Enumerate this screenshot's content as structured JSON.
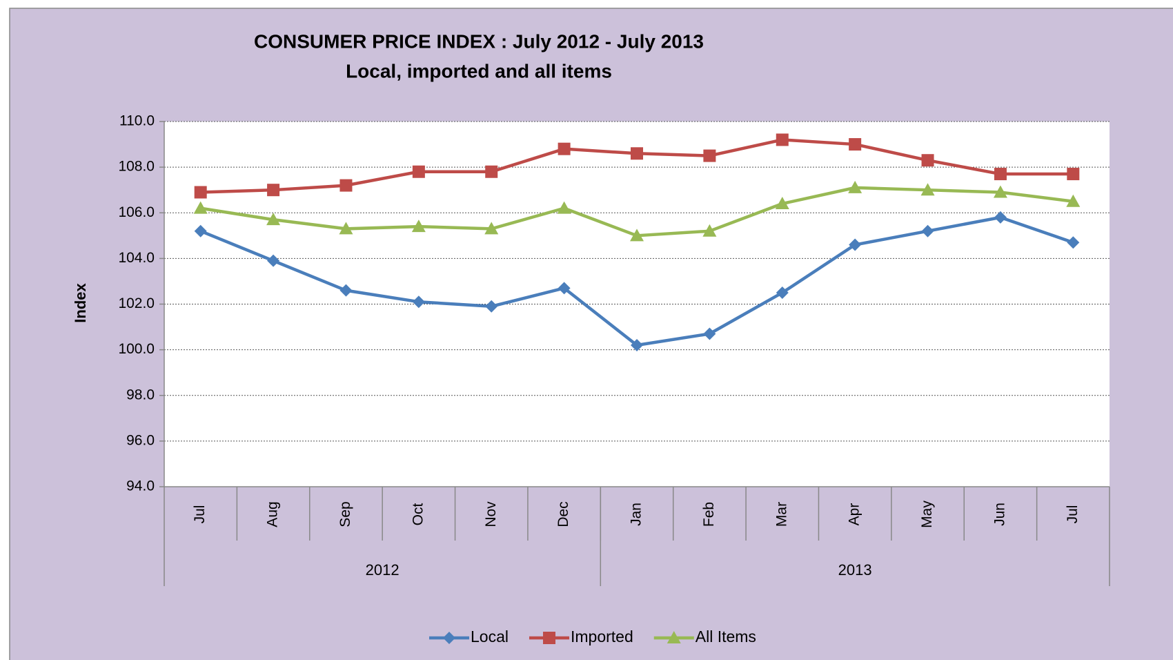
{
  "chart_data": {
    "type": "line",
    "title": "CONSUMER PRICE INDEX : July 2012 - July 2013",
    "subtitle": "Local, imported and all items",
    "y_label": "Index",
    "categories": [
      "Jul",
      "Aug",
      "Sep",
      "Oct",
      "Nov",
      "Dec",
      "Jan",
      "Feb",
      "Mar",
      "Apr",
      "May",
      "Jun",
      "Jul"
    ],
    "x_groups": [
      {
        "label": "2012",
        "span": 6
      },
      {
        "label": "2013",
        "span": 7
      }
    ],
    "series": [
      {
        "name": "Local",
        "color": "#4a7ebb",
        "marker": "diamond",
        "values": [
          105.2,
          103.9,
          102.6,
          102.1,
          101.9,
          102.7,
          100.2,
          100.7,
          102.5,
          104.6,
          105.2,
          105.8,
          104.7
        ]
      },
      {
        "name": "Imported",
        "color": "#be4b48",
        "marker": "square",
        "values": [
          106.9,
          107.0,
          107.2,
          107.8,
          107.8,
          108.8,
          108.6,
          108.5,
          109.2,
          109.0,
          108.3,
          107.7,
          107.7
        ]
      },
      {
        "name": "All Items",
        "color": "#98b954",
        "marker": "triangle",
        "values": [
          106.2,
          105.7,
          105.3,
          105.4,
          105.3,
          106.2,
          105.0,
          105.2,
          106.4,
          107.1,
          107.0,
          106.9,
          106.5
        ]
      }
    ],
    "ylim": [
      94,
      110
    ],
    "yticks": [
      {
        "value": 94,
        "label": "94.0"
      },
      {
        "value": 96,
        "label": "96.0"
      },
      {
        "value": 98,
        "label": "98.0"
      },
      {
        "value": 100,
        "label": "100.0"
      },
      {
        "value": 102,
        "label": "102.0"
      },
      {
        "value": 104,
        "label": "104.0"
      },
      {
        "value": 106,
        "label": "106.0"
      },
      {
        "value": 108,
        "label": "108.0"
      },
      {
        "value": 110,
        "label": "110.0"
      }
    ],
    "grid": true,
    "legend": "bottom"
  }
}
